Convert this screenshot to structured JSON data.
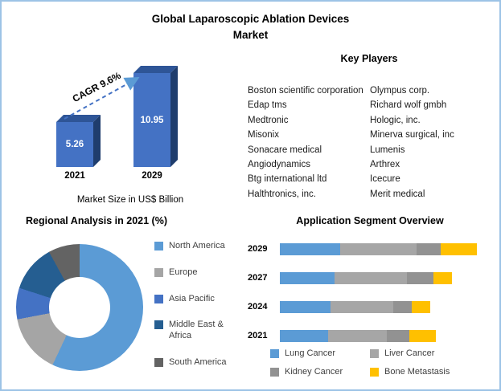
{
  "title": {
    "line1": "Global Laparoscopic Ablation Devices",
    "line2": "Market"
  },
  "market_chart": {
    "caption": "Market Size in US$ Billion",
    "cagr_label": "CAGR 9.6%"
  },
  "key_players": {
    "heading": "Key Players",
    "column1": [
      "Boston scientific corporation",
      "Edap tms",
      "Medtronic",
      "Misonix",
      "Sonacare medical",
      "Angiodynamics",
      "Btg international ltd",
      "Halthtronics, inc."
    ],
    "column2": [
      "Olympus corp.",
      "Richard wolf gmbh",
      "Hologic, inc.",
      "Minerva surgical, inc",
      "Lumenis",
      "Arthrex",
      "Icecure",
      "Merit medical"
    ]
  },
  "regional": {
    "heading": "Regional Analysis in 2021 (%)"
  },
  "application": {
    "heading": "Application Segment Overview"
  },
  "colors": {
    "frame_border": "#9DC3E6",
    "bar_face": "#4472C4",
    "bar_top": "#2E5597",
    "bar_side": "#1F3D6D",
    "arrow_color": "#4472C4",
    "arrow_head": "#5B9BD5",
    "legend_text": "#404040"
  },
  "chart_data": [
    {
      "id": "market_size",
      "type": "bar",
      "style": "3d",
      "title": "Market Size in US$ Billion",
      "categories": [
        "2021",
        "2029"
      ],
      "values": [
        5.26,
        10.95
      ],
      "unit": "US$ Billion",
      "annotation": "CAGR 9.6%",
      "ylim": [
        0,
        12
      ],
      "bar_color": "#4472C4"
    },
    {
      "id": "regional_2021",
      "type": "pie",
      "subtype": "donut",
      "title": "Regional Analysis in 2021 (%)",
      "labels": [
        "North America",
        "Europe",
        "Asia Pacific",
        "Middle East & Africa",
        "South America"
      ],
      "values": [
        57,
        15,
        8,
        12,
        8
      ],
      "colors": [
        "#5B9BD5",
        "#A5A5A5",
        "#4472C4",
        "#255E91",
        "#636363"
      ],
      "legend_position": "right"
    },
    {
      "id": "application_segments",
      "type": "bar",
      "orientation": "horizontal",
      "stacked": true,
      "title": "Application Segment Overview",
      "categories": [
        "2029",
        "2027",
        "2024",
        "2021"
      ],
      "series": [
        {
          "name": "Lung Cancer",
          "color": "#5B9BD5",
          "values": [
            30,
            27,
            25,
            24
          ]
        },
        {
          "name": "Liver Cancer",
          "color": "#A6A6A6",
          "values": [
            38,
            36,
            31,
            29
          ]
        },
        {
          "name": "Kidney Cancer",
          "color": "#929292",
          "values": [
            12,
            13,
            9,
            11
          ]
        },
        {
          "name": "Bone Metastasis",
          "color": "#FFC000",
          "values": [
            18,
            9,
            9,
            13
          ]
        }
      ],
      "xlim": [
        0,
        100
      ],
      "legend_position": "bottom"
    }
  ]
}
